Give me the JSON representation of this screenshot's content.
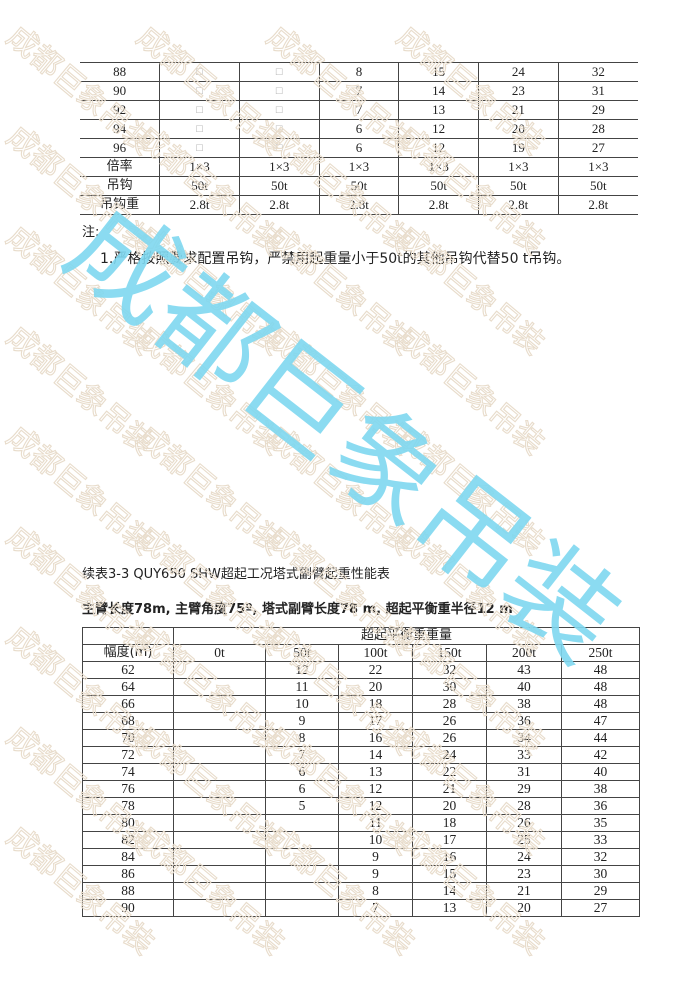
{
  "table1": {
    "rows": [
      [
        "88",
        "□",
        "□",
        "8",
        "15",
        "24",
        "32"
      ],
      [
        "90",
        "□",
        "□",
        "7",
        "14",
        "23",
        "31"
      ],
      [
        "92",
        "□",
        "□",
        "7",
        "13",
        "21",
        "29"
      ],
      [
        "94",
        "□",
        "□",
        "6",
        "12",
        "20",
        "28"
      ],
      [
        "96",
        "□",
        "□",
        "6",
        "12",
        "19",
        "27"
      ],
      [
        "倍率",
        "1×3",
        "1×3",
        "1×3",
        "1×3",
        "1×3",
        "1×3"
      ],
      [
        "吊钩",
        "50t",
        "50t",
        "50t",
        "50t",
        "50t",
        "50t"
      ],
      [
        "吊钩重",
        "2.8t",
        "2.8t",
        "2.8t",
        "2.8t",
        "2.8t",
        "2.8t"
      ]
    ]
  },
  "note": {
    "label": "注:",
    "item1": "1.严格按照要求配置吊钩，严禁用起重量小于50t的其他吊钩代替50 t吊钩。"
  },
  "table2": {
    "title": "续表3-3 QUY650 SHW超起工况塔式副臂起重性能表",
    "subtitle": "主臂长度78m, 主臂角度75º, 塔式副臂长度78 m, 超起平衡重半径12 m",
    "group_header": "超起平衡重重量",
    "row_header": "幅度(m)",
    "columns": [
      "0t",
      "50t",
      "100t",
      "150t",
      "200t",
      "250t"
    ],
    "rows": [
      [
        "62",
        "",
        "12",
        "22",
        "32",
        "43",
        "48"
      ],
      [
        "64",
        "",
        "11",
        "20",
        "30",
        "40",
        "48"
      ],
      [
        "66",
        "",
        "10",
        "18",
        "28",
        "38",
        "48"
      ],
      [
        "68",
        "",
        "9",
        "17",
        "26",
        "36",
        "47"
      ],
      [
        "70",
        "",
        "8",
        "16",
        "26",
        "34",
        "44"
      ],
      [
        "72",
        "",
        "7",
        "14",
        "24",
        "33",
        "42"
      ],
      [
        "74",
        "",
        "6",
        "13",
        "22",
        "31",
        "40"
      ],
      [
        "76",
        "",
        "6",
        "12",
        "21",
        "29",
        "38"
      ],
      [
        "78",
        "",
        "5",
        "12",
        "20",
        "28",
        "36"
      ],
      [
        "80",
        "",
        "",
        "11",
        "18",
        "26",
        "35"
      ],
      [
        "82",
        "",
        "",
        "10",
        "17",
        "25",
        "33"
      ],
      [
        "84",
        "",
        "",
        "9",
        "16",
        "24",
        "32"
      ],
      [
        "86",
        "",
        "",
        "9",
        "15",
        "23",
        "30"
      ],
      [
        "88",
        "",
        "",
        "8",
        "14",
        "21",
        "29"
      ],
      [
        "90",
        "",
        "",
        "7",
        "13",
        "20",
        "27"
      ]
    ]
  },
  "watermark": {
    "text": "成都巨象吊装",
    "small_color": "#e8dccb",
    "large_color": "#7fd8f0"
  }
}
